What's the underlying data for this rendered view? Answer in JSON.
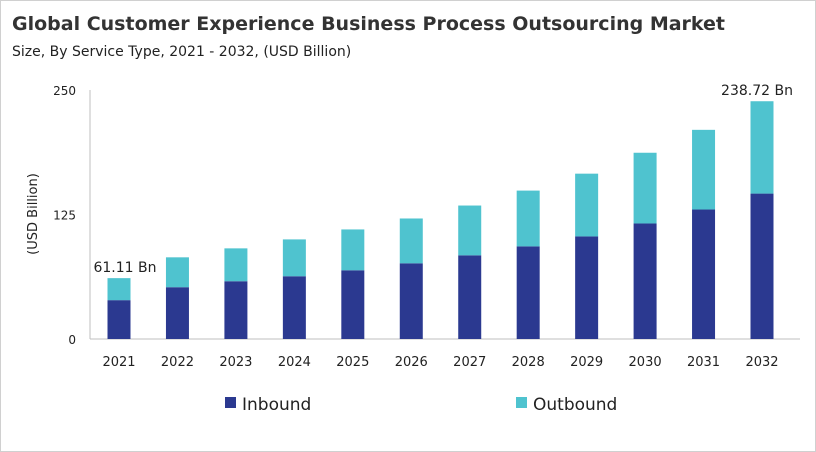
{
  "chart_data": {
    "type": "bar",
    "stacked": true,
    "title": "Global Customer Experience Business Process Outsourcing Market",
    "subtitle": "Size, By Service Type, 2021 - 2032, (USD Billion)",
    "xlabel": "",
    "ylabel": "(USD Billion)",
    "ylim": [
      0,
      250
    ],
    "yticks": [
      0,
      125,
      250
    ],
    "grid": false,
    "legend_position": "bottom",
    "categories": [
      "2021",
      "2022",
      "2023",
      "2024",
      "2025",
      "2026",
      "2027",
      "2028",
      "2029",
      "2030",
      "2031",
      "2032"
    ],
    "series": [
      {
        "name": "Inbound",
        "color": "#2b3990",
        "values": [
          39,
          52,
          58,
          63,
          69,
          76,
          84,
          93,
          103,
          116,
          130,
          146
        ]
      },
      {
        "name": "Outbound",
        "color": "#4fc3cf",
        "values": [
          22.11,
          30,
          33,
          37,
          41,
          45,
          50,
          56,
          63,
          71,
          80,
          92.72
        ]
      }
    ],
    "annotations": [
      {
        "category": "2021",
        "text": "61.11 Bn"
      },
      {
        "category": "2032",
        "text": "238.72 Bn"
      }
    ]
  }
}
